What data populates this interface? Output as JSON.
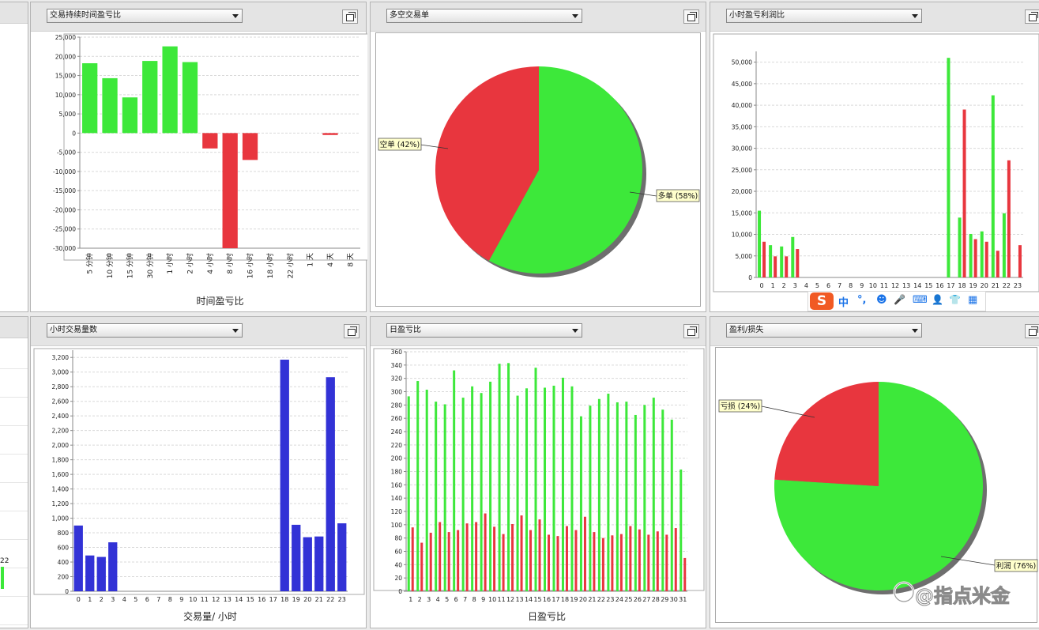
{
  "panels": {
    "p1": {
      "select": "交易持续时间盈亏比"
    },
    "p2": {
      "select": "多空交易单"
    },
    "p3": {
      "select": "小时盈亏利润比"
    },
    "p4": {
      "select": "小时交易量数"
    },
    "p5": {
      "select": "日盈亏比"
    },
    "p6": {
      "select": "盈利/损失"
    }
  },
  "left_edge": {
    "label": "22"
  },
  "ime": {
    "zh": "中",
    "punct": "°,",
    "smiley": "☻",
    "mic": "🎤",
    "keyboard": "⌨",
    "user": "👤",
    "shirt": "👕",
    "grid": "▦"
  },
  "watermark": {
    "text": "@指点米金"
  },
  "colors": {
    "green": "#3de83a",
    "red": "#e8363e",
    "blue": "#3232d6"
  },
  "chart_data": [
    {
      "id": "duration",
      "type": "bar",
      "xlabel": "时间盈亏比",
      "ylim": [
        -30000,
        25000
      ],
      "yticks": [
        25000,
        20000,
        15000,
        10000,
        5000,
        0,
        -5000,
        -10000,
        -15000,
        -20000,
        -25000,
        -30000
      ],
      "ytick_labels": [
        "25,000",
        "20,000",
        "15,000",
        "10,000",
        "5,000",
        "0",
        "-5,000",
        "-10,000",
        "-15,000",
        "-20,000",
        "-25,000",
        "-30,000"
      ],
      "categories": [
        "5 分钟",
        "10 分钟",
        "15 分钟",
        "30 分钟",
        "1 小时",
        "2 小时",
        "4 小时",
        "8 小时",
        "16 小时",
        "18 小时",
        "22 小时",
        "1 天",
        "4 天",
        "8 天"
      ],
      "values": [
        18200,
        14300,
        9300,
        18800,
        22600,
        18500,
        -4000,
        -30000,
        -7000,
        0,
        0,
        0,
        -500,
        0
      ]
    },
    {
      "id": "longshort",
      "type": "pie",
      "slices": [
        {
          "label": "多单 (58%)",
          "value": 58,
          "color": "#3de83a"
        },
        {
          "label": "空单 (42%)",
          "value": 42,
          "color": "#e8363e"
        }
      ]
    },
    {
      "id": "hourpnl",
      "type": "bar",
      "ylim": [
        0,
        52500
      ],
      "yticks": [
        0,
        5000,
        10000,
        15000,
        20000,
        25000,
        30000,
        35000,
        40000,
        45000,
        50000
      ],
      "ytick_labels": [
        "0",
        "5,000",
        "10,000",
        "15,000",
        "20,000",
        "25,000",
        "30,000",
        "35,000",
        "40,000",
        "45,000",
        "50,000"
      ],
      "categories": [
        "0",
        "1",
        "2",
        "3",
        "4",
        "5",
        "6",
        "7",
        "8",
        "9",
        "10",
        "11",
        "12",
        "13",
        "14",
        "15",
        "16",
        "17",
        "18",
        "19",
        "20",
        "21",
        "22",
        "23"
      ],
      "series": [
        {
          "values": [
            15500,
            7500,
            7200,
            9400,
            0,
            0,
            0,
            0,
            0,
            0,
            0,
            0,
            0,
            0,
            0,
            0,
            0,
            51000,
            13900,
            10100,
            10700,
            42300,
            14900,
            0
          ]
        },
        {
          "values": [
            8300,
            4900,
            4900,
            6600,
            0,
            0,
            0,
            0,
            0,
            0,
            0,
            0,
            0,
            0,
            0,
            0,
            0,
            0,
            39000,
            8900,
            8300,
            6200,
            27200,
            7500
          ]
        }
      ]
    },
    {
      "id": "hourvolume",
      "type": "bar",
      "xlabel": "交易量/ 小时",
      "ylim": [
        0,
        3300
      ],
      "yticks": [
        0,
        200,
        400,
        600,
        800,
        1000,
        1200,
        1400,
        1600,
        1800,
        2000,
        2200,
        2400,
        2600,
        2800,
        3000,
        3200
      ],
      "ytick_labels": [
        "0",
        "200",
        "400",
        "600",
        "800",
        "1,000",
        "1,200",
        "1,400",
        "1,600",
        "1,800",
        "2,000",
        "2,200",
        "2,400",
        "2,600",
        "2,800",
        "3,000",
        "3,200"
      ],
      "categories": [
        "0",
        "1",
        "2",
        "3",
        "4",
        "5",
        "6",
        "7",
        "8",
        "9",
        "10",
        "11",
        "12",
        "13",
        "14",
        "15",
        "16",
        "17",
        "18",
        "19",
        "20",
        "21",
        "22",
        "23"
      ],
      "values": [
        900,
        490,
        470,
        670,
        0,
        0,
        0,
        0,
        0,
        0,
        0,
        0,
        0,
        0,
        0,
        0,
        0,
        0,
        3170,
        910,
        740,
        750,
        2930,
        930
      ]
    },
    {
      "id": "daily",
      "type": "bar",
      "xlabel": "日盈亏比",
      "ylim": [
        0,
        360
      ],
      "yticks": [
        0,
        20,
        40,
        60,
        80,
        100,
        120,
        140,
        160,
        180,
        200,
        220,
        240,
        260,
        280,
        300,
        320,
        340,
        360
      ],
      "ytick_labels": [
        "0",
        "20",
        "40",
        "60",
        "80",
        "100",
        "120",
        "140",
        "160",
        "180",
        "200",
        "220",
        "240",
        "260",
        "280",
        "300",
        "320",
        "340",
        "360"
      ],
      "categories": [
        "1",
        "2",
        "3",
        "4",
        "5",
        "6",
        "7",
        "8",
        "9",
        "10",
        "11",
        "12",
        "13",
        "14",
        "15",
        "16",
        "17",
        "18",
        "19",
        "20",
        "21",
        "22",
        "23",
        "24",
        "25",
        "26",
        "27",
        "28",
        "29",
        "30",
        "31"
      ],
      "series": [
        {
          "values": [
            293,
            316,
            303,
            285,
            281,
            332,
            291,
            308,
            298,
            315,
            342,
            343,
            294,
            305,
            336,
            306,
            309,
            321,
            308,
            263,
            279,
            289,
            297,
            284,
            285,
            265,
            280,
            291,
            273,
            258,
            183
          ]
        },
        {
          "values": [
            96,
            73,
            88,
            104,
            89,
            92,
            102,
            104,
            117,
            97,
            86,
            101,
            114,
            92,
            108,
            85,
            83,
            98,
            92,
            112,
            89,
            80,
            84,
            86,
            98,
            93,
            85,
            90,
            85,
            95,
            50
          ]
        }
      ]
    },
    {
      "id": "profitloss",
      "type": "pie",
      "slices": [
        {
          "label": "利润 (76%)",
          "value": 76,
          "color": "#3de83a"
        },
        {
          "label": "亏损 (24%)",
          "value": 24,
          "color": "#e8363e"
        }
      ]
    }
  ]
}
